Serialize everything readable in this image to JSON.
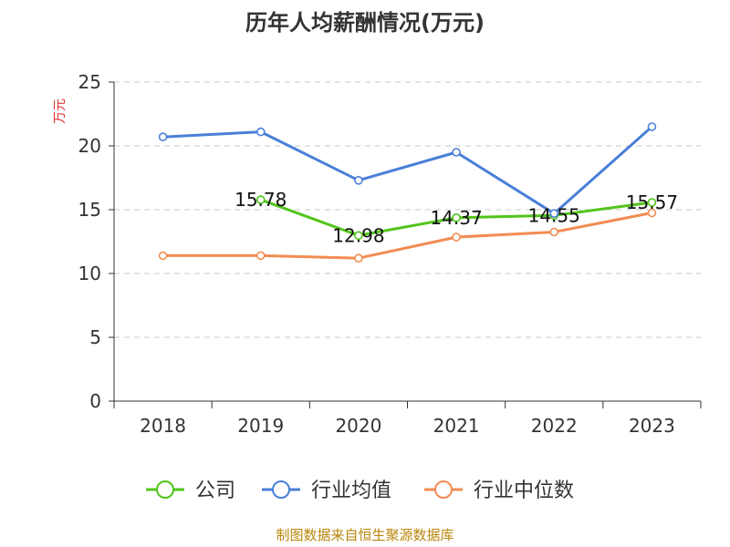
{
  "chart_data": {
    "type": "line",
    "title": "历年人均薪酬情况(万元)",
    "ylabel": "万元",
    "xlabel": "",
    "categories": [
      "2018",
      "2019",
      "2020",
      "2021",
      "2022",
      "2023"
    ],
    "ylim": [
      0,
      25
    ],
    "yticks": [
      0,
      5,
      10,
      15,
      20,
      25
    ],
    "grid": true,
    "legend_position": "bottom",
    "series": [
      {
        "name": "公司",
        "color": "#52c41a",
        "values": [
          null,
          15.78,
          12.98,
          14.37,
          14.55,
          15.57
        ],
        "labels": [
          "",
          "15.78",
          "12.98",
          "14.37",
          "14.55",
          "15.57"
        ]
      },
      {
        "name": "行业均值",
        "color": "#4a7fd8",
        "values": [
          20.7,
          21.1,
          17.3,
          19.5,
          14.7,
          21.5
        ]
      },
      {
        "name": "行业中位数",
        "color": "#f28c52",
        "values": [
          11.4,
          11.4,
          11.2,
          12.85,
          13.25,
          14.75
        ]
      }
    ]
  },
  "source": "制图数据来自恒生聚源数据库"
}
